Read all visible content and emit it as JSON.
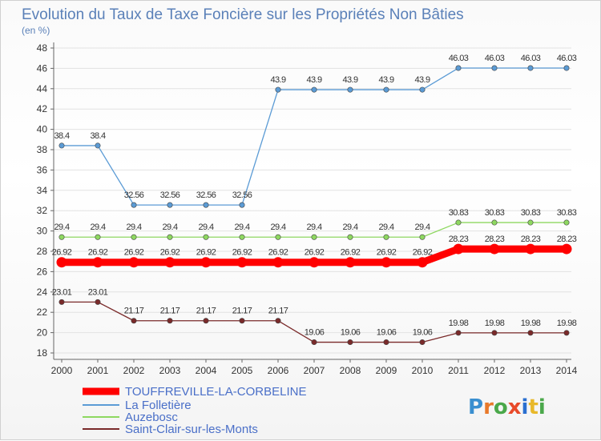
{
  "chart_data": {
    "type": "line",
    "title": "Evolution du Taux de Taxe Foncière sur les Propriétés Non Bâties",
    "subtitle": "(en %)",
    "x": [
      2000,
      2001,
      2002,
      2003,
      2004,
      2005,
      2006,
      2007,
      2008,
      2009,
      2010,
      2011,
      2012,
      2013,
      2014
    ],
    "x_tick_labels": [
      "2000",
      "2001",
      "2002",
      "2003",
      "2004",
      "2005",
      "2006",
      "2007",
      "2008",
      "2009",
      "2010",
      "2011",
      "2012",
      "2013",
      "2014"
    ],
    "ylim": [
      18,
      48
    ],
    "y_ticks": [
      18,
      20,
      22,
      24,
      26,
      28,
      30,
      32,
      34,
      36,
      38,
      40,
      42,
      44,
      46,
      48
    ],
    "grid": "horizontal",
    "legend_position": "bottom-left",
    "series": [
      {
        "name": "TOUFFREVILLE-LA-CORBELINE",
        "color": "#ff0000",
        "emphasis": true,
        "values": [
          26.92,
          26.92,
          26.92,
          26.92,
          26.92,
          26.92,
          26.92,
          26.92,
          26.92,
          26.92,
          26.92,
          28.23,
          28.23,
          28.23,
          28.23
        ],
        "labels": [
          "26.92",
          "26.92",
          "26.92",
          "26.92",
          "26.92",
          "26.92",
          "26.92",
          "26.92",
          "26.92",
          "26.92",
          "26.92",
          "28.23",
          "28.23",
          "28.23",
          "28.23"
        ]
      },
      {
        "name": "La Folletière",
        "color": "#5b9bd5",
        "emphasis": false,
        "values": [
          38.4,
          38.4,
          32.56,
          32.56,
          32.56,
          32.56,
          43.9,
          43.9,
          43.9,
          43.9,
          43.9,
          46.03,
          46.03,
          46.03,
          46.03
        ],
        "labels": [
          "38.4",
          "38.4",
          "32.56",
          "32.56",
          "32.56",
          "32.56",
          "43.9",
          "43.9",
          "43.9",
          "43.9",
          "43.9",
          "46.03",
          "46.03",
          "46.03",
          "46.03"
        ]
      },
      {
        "name": "Auzebosc",
        "color": "#8ed860",
        "emphasis": false,
        "values": [
          29.4,
          29.4,
          29.4,
          29.4,
          29.4,
          29.4,
          29.4,
          29.4,
          29.4,
          29.4,
          29.4,
          30.83,
          30.83,
          30.83,
          30.83
        ],
        "labels": [
          "29.4",
          "29.4",
          "29.4",
          "29.4",
          "29.4",
          "29.4",
          "29.4",
          "29.4",
          "29.4",
          "29.4",
          "29.4",
          "30.83",
          "30.83",
          "30.83",
          "30.83"
        ]
      },
      {
        "name": "Saint-Clair-sur-les-Monts",
        "color": "#7a2a2a",
        "emphasis": false,
        "values": [
          23.01,
          23.01,
          21.17,
          21.17,
          21.17,
          21.17,
          21.17,
          19.06,
          19.06,
          19.06,
          19.06,
          19.98,
          19.98,
          19.98,
          19.98
        ],
        "labels": [
          "23.01",
          "23.01",
          "21.17",
          "21.17",
          "21.17",
          "21.17",
          "21.17",
          "19.06",
          "19.06",
          "19.06",
          "19.06",
          "19.98",
          "19.98",
          "19.98",
          "19.98"
        ]
      }
    ]
  },
  "branding": {
    "logo_text": "Proxiti",
    "logo_colors": [
      "#3a8fd0",
      "#e8792a",
      "#4aa84a",
      "#e84a2a",
      "#2a6fd0",
      "#e8b82a",
      "#4aa84a"
    ]
  }
}
